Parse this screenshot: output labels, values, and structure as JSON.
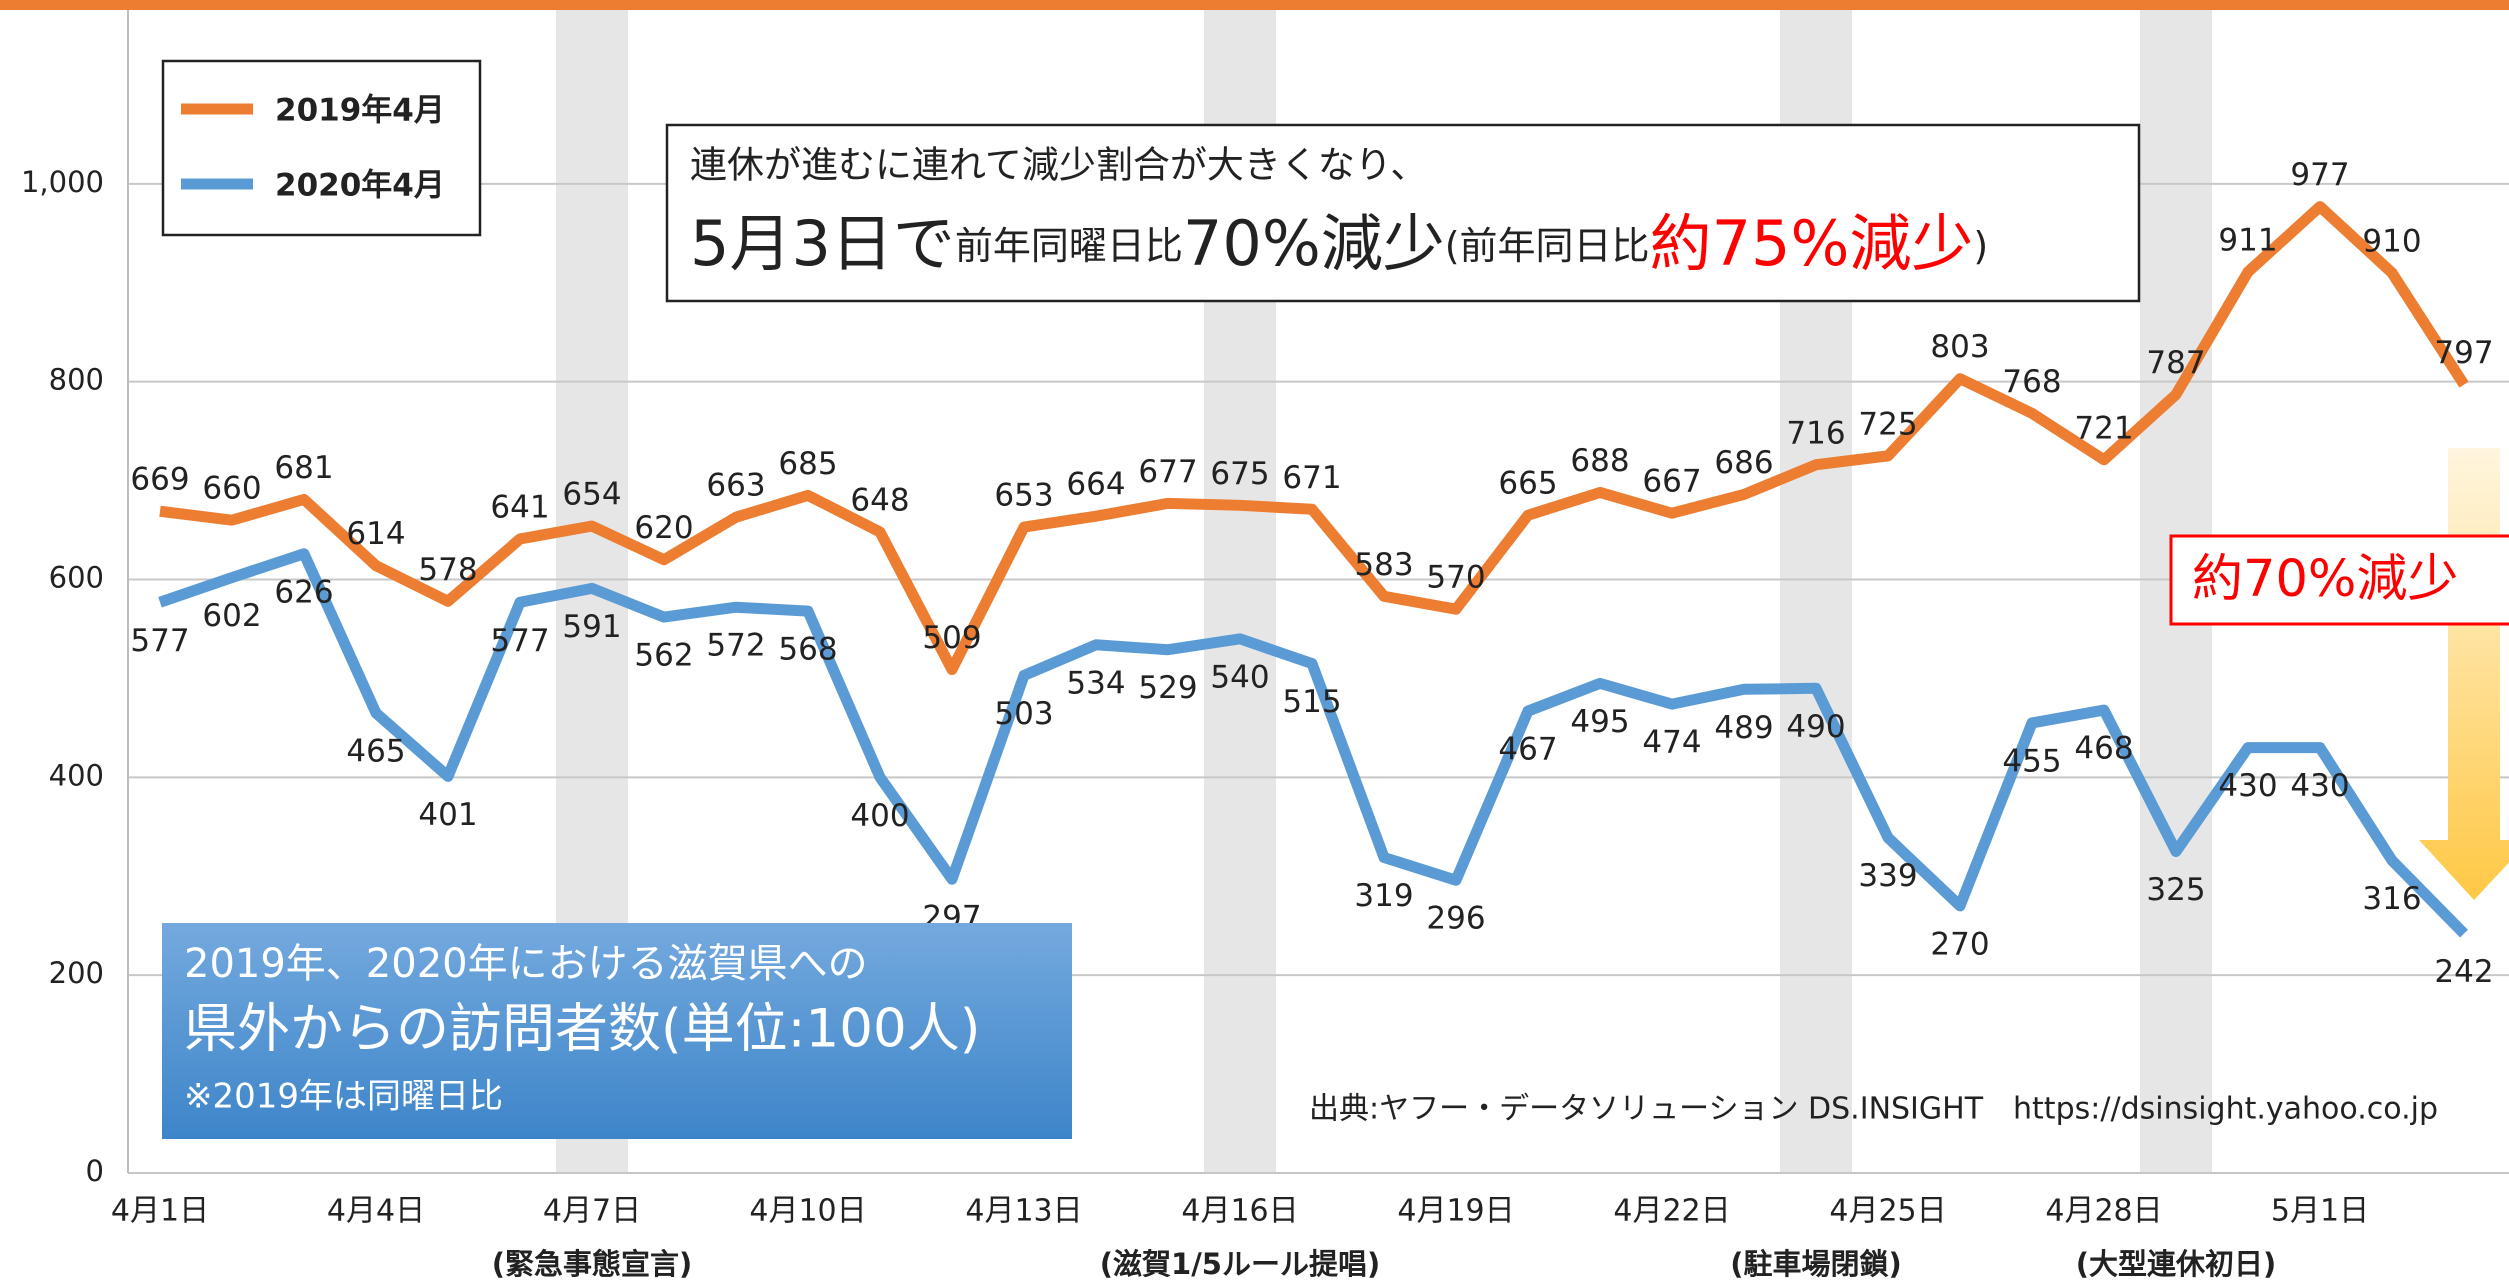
{
  "chart_data": {
    "type": "line",
    "categories": [
      "4月1日",
      null,
      null,
      "4月4日",
      null,
      null,
      "4月7日",
      null,
      null,
      "4月10日",
      null,
      null,
      "4月13日",
      null,
      null,
      "4月16日",
      null,
      null,
      "4月19日",
      null,
      null,
      "4月22日",
      null,
      null,
      "4月25日",
      null,
      null,
      "4月28日",
      null,
      null,
      "5月1日",
      null,
      null
    ],
    "series": [
      {
        "name": "2019年4月",
        "color": "#ed7d31",
        "values": [
          669,
          660,
          681,
          614,
          578,
          641,
          654,
          620,
          663,
          685,
          648,
          509,
          653,
          664,
          677,
          675,
          671,
          583,
          570,
          665,
          688,
          667,
          686,
          716,
          725,
          803,
          768,
          721,
          787,
          911,
          977,
          910,
          797
        ]
      },
      {
        "name": "2020年4月",
        "color": "#5b9bd5",
        "values": [
          577,
          602,
          626,
          465,
          401,
          577,
          591,
          562,
          572,
          568,
          400,
          297,
          503,
          534,
          529,
          540,
          515,
          319,
          296,
          467,
          495,
          474,
          489,
          490,
          339,
          270,
          455,
          468,
          325,
          430,
          430,
          316,
          242
        ]
      }
    ],
    "ylim": [
      0,
      1200
    ],
    "yticks": [
      0,
      200,
      400,
      600,
      800,
      {
        "value": 1000,
        "label": "1,000"
      }
    ],
    "grid": true,
    "legend": "top-left",
    "highlights": [
      {
        "index": 6,
        "label": "(緊急事態宣言)"
      },
      {
        "index": 15,
        "label": "(滋賀1/5ルール提唱)"
      },
      {
        "index": 23,
        "label": "(駐車場閉鎖)"
      },
      {
        "index": 28,
        "label": "(大型連休初日)"
      }
    ],
    "callout": {
      "line1": "連休が進むに連れて減少割合が大きくなり、",
      "line2": [
        "5月3日で",
        "前年同曜日比",
        "70%減少",
        "(前年同日比",
        "約75%減少",
        ")"
      ]
    },
    "title_box": [
      "2019年、2020年における滋賀県への",
      "県外からの訪問者数(単位:100人)",
      "※2019年は同曜日比"
    ],
    "source": "出典:ヤフー・データソリューション DS.INSIGHT　https://dsinsight.yahoo.co.jp",
    "reduction_label": "約70%減少"
  }
}
